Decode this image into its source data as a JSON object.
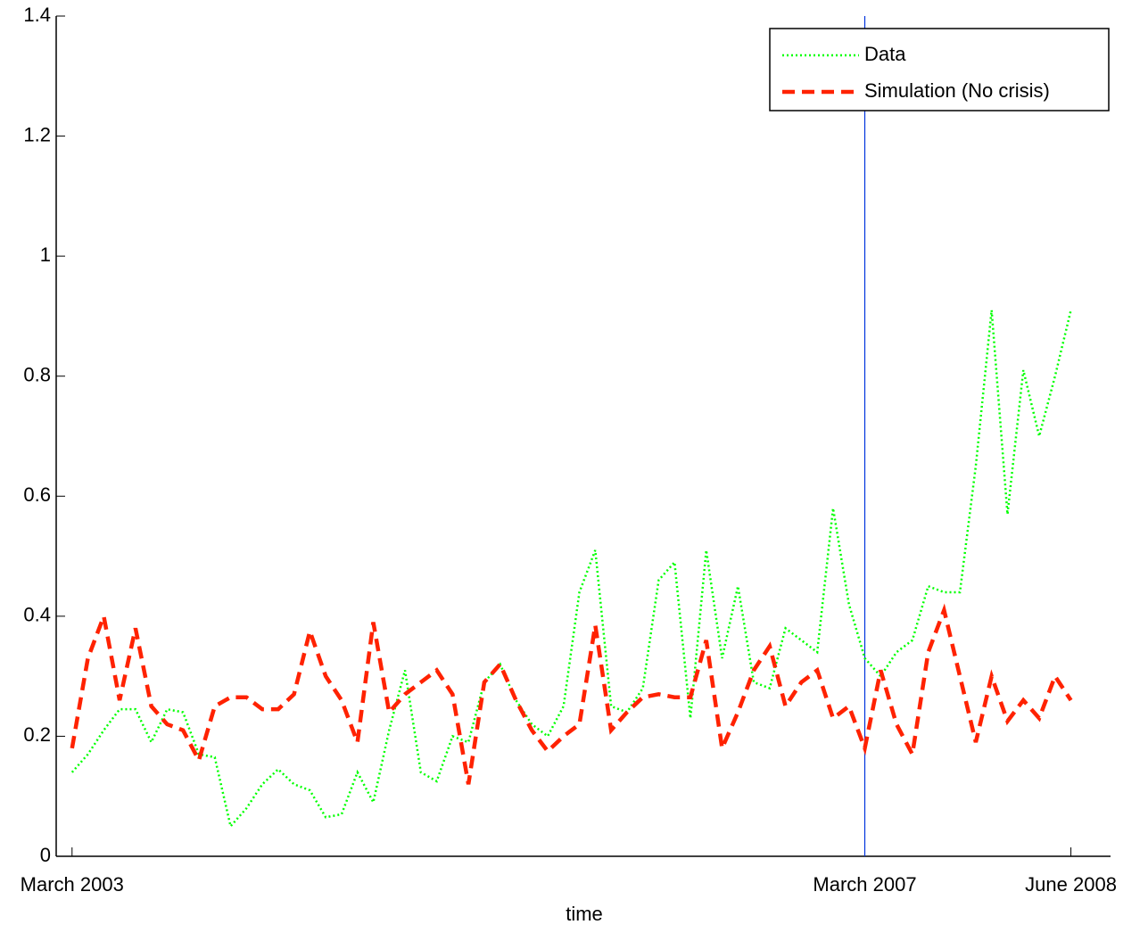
{
  "chart_data": {
    "type": "line",
    "x_label": "time",
    "x": [
      1,
      2,
      3,
      4,
      5,
      6,
      7,
      8,
      9,
      10,
      11,
      12,
      13,
      14,
      15,
      16,
      17,
      18,
      19,
      20,
      21,
      22,
      23,
      24,
      25,
      26,
      27,
      28,
      29,
      30,
      31,
      32,
      33,
      34,
      35,
      36,
      37,
      38,
      39,
      40,
      41,
      42,
      43,
      44,
      45,
      46,
      47,
      48,
      49,
      50,
      51,
      52,
      53,
      54,
      55,
      56,
      57,
      58,
      59,
      60,
      61,
      62,
      63,
      64
    ],
    "series": [
      {
        "name": "Data",
        "color": "#00ff00",
        "dash": "2,3",
        "values": [
          0.14,
          0.17,
          0.21,
          0.245,
          0.245,
          0.19,
          0.245,
          0.24,
          0.17,
          0.165,
          0.05,
          0.08,
          0.12,
          0.145,
          0.12,
          0.11,
          0.065,
          0.07,
          0.14,
          0.09,
          0.21,
          0.31,
          0.14,
          0.125,
          0.2,
          0.19,
          0.29,
          0.32,
          0.26,
          0.22,
          0.2,
          0.25,
          0.44,
          0.51,
          0.25,
          0.24,
          0.28,
          0.46,
          0.49,
          0.23,
          0.51,
          0.33,
          0.45,
          0.29,
          0.28,
          0.38,
          0.36,
          0.34,
          0.58,
          0.42,
          0.33,
          0.3,
          0.34,
          0.36,
          0.45,
          0.44,
          0.44,
          0.65,
          0.91,
          0.57,
          0.81,
          0.7,
          0.8,
          0.91
        ]
      },
      {
        "name": "Simulation (No crisis)",
        "color": "#ff2200",
        "dash": "14,8",
        "values": [
          0.18,
          0.33,
          0.4,
          0.26,
          0.38,
          0.25,
          0.22,
          0.21,
          0.16,
          0.25,
          0.265,
          0.265,
          0.245,
          0.245,
          0.27,
          0.375,
          0.3,
          0.26,
          0.19,
          0.39,
          0.24,
          0.27,
          0.29,
          0.31,
          0.27,
          0.12,
          0.29,
          0.32,
          0.26,
          0.21,
          0.175,
          0.2,
          0.22,
          0.385,
          0.21,
          0.24,
          0.265,
          0.27,
          0.265,
          0.265,
          0.36,
          0.18,
          0.24,
          0.31,
          0.35,
          0.25,
          0.29,
          0.31,
          0.23,
          0.25,
          0.18,
          0.31,
          0.22,
          0.17,
          0.34,
          0.41,
          0.3,
          0.19,
          0.3,
          0.225,
          0.26,
          0.23,
          0.3,
          0.26
        ]
      }
    ],
    "vline": {
      "x": 51,
      "color": "#0033dd"
    },
    "xlim": [
      0,
      66.5
    ],
    "xticks": [
      {
        "value": 1,
        "label": "March 2003"
      },
      {
        "value": 51,
        "label": "March 2007"
      },
      {
        "value": 64,
        "label": "June 2008"
      }
    ],
    "ylim": [
      0,
      1.4
    ],
    "yticks": [
      0,
      0.2,
      0.4,
      0.6,
      0.8,
      1,
      1.2,
      1.4
    ],
    "legend": "upper right"
  }
}
